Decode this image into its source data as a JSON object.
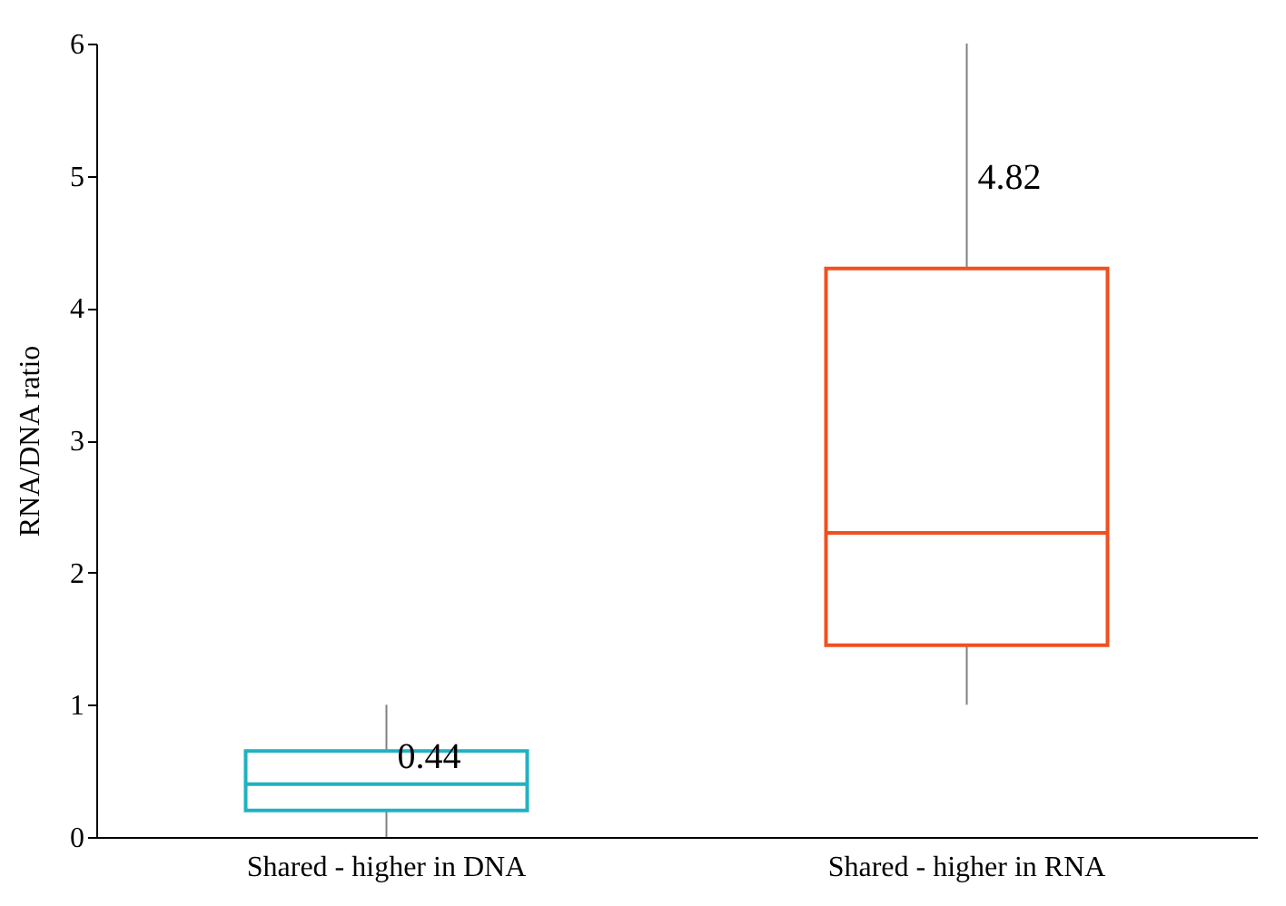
{
  "chart_data": {
    "type": "box",
    "ylabel": "RNA/DNA ratio",
    "categories": [
      "Shared - higher in DNA",
      "Shared - higher in RNA"
    ],
    "boxes": [
      {
        "low": 0,
        "q1": 0.2,
        "median": 0.4,
        "q3": 0.65,
        "high": 1.0
      },
      {
        "low": 1.0,
        "q1": 1.45,
        "median": 2.3,
        "q3": 4.3,
        "high": 6.0
      }
    ],
    "colors": [
      "#20b2c2",
      "#f0501e"
    ],
    "ylim": [
      0,
      6
    ],
    "yticks": [
      0,
      1,
      2,
      3,
      4,
      5,
      6
    ],
    "grid": false,
    "annotations": [
      {
        "text": "0.44",
        "x": "Shared - higher in DNA",
        "y": 0.44
      },
      {
        "text": "4.82",
        "x": "Shared - higher in RNA",
        "y": 4.82
      }
    ]
  }
}
